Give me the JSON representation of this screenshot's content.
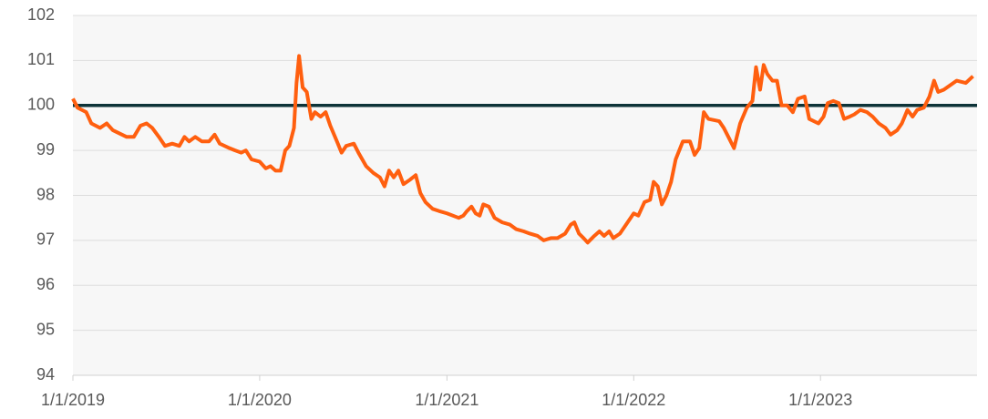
{
  "chart_data": {
    "type": "line",
    "x": [
      "2019-01-01",
      "2019-01-10",
      "2019-01-27",
      "2019-02-06",
      "2019-02-23",
      "2019-03-08",
      "2019-03-20",
      "2019-04-16",
      "2019-04-30",
      "2019-05-13",
      "2019-05-25",
      "2019-06-05",
      "2019-06-18",
      "2019-06-30",
      "2019-07-14",
      "2019-07-28",
      "2019-08-07",
      "2019-08-16",
      "2019-08-28",
      "2019-09-10",
      "2019-09-24",
      "2019-10-05",
      "2019-10-15",
      "2019-11-03",
      "2019-11-14",
      "2019-11-26",
      "2019-12-05",
      "2019-12-16",
      "2020-01-01",
      "2020-01-13",
      "2020-01-22",
      "2020-02-01",
      "2020-02-11",
      "2020-02-20",
      "2020-02-28",
      "2020-03-08",
      "2020-03-13",
      "2020-03-18",
      "2020-03-25",
      "2020-04-02",
      "2020-04-11",
      "2020-04-18",
      "2020-04-29",
      "2020-05-09",
      "2020-05-18",
      "2020-05-31",
      "2020-06-09",
      "2020-06-18",
      "2020-07-03",
      "2020-07-12",
      "2020-07-27",
      "2020-08-10",
      "2020-08-23",
      "2020-09-01",
      "2020-09-10",
      "2020-09-19",
      "2020-09-28",
      "2020-10-08",
      "2020-10-21",
      "2020-11-01",
      "2020-11-10",
      "2020-11-20",
      "2020-12-04",
      "2020-12-17",
      "2021-01-01",
      "2021-01-24",
      "2021-02-02",
      "2021-02-09",
      "2021-02-18",
      "2021-02-26",
      "2021-03-06",
      "2021-03-13",
      "2021-03-24",
      "2021-04-04",
      "2021-04-19",
      "2021-05-04",
      "2021-05-16",
      "2021-05-31",
      "2021-06-12",
      "2021-06-27",
      "2021-07-09",
      "2021-07-23",
      "2021-08-05",
      "2021-08-20",
      "2021-08-31",
      "2021-09-07",
      "2021-09-16",
      "2021-09-25",
      "2021-10-03",
      "2021-10-16",
      "2021-10-26",
      "2021-11-04",
      "2021-11-14",
      "2021-11-22",
      "2021-12-05",
      "2021-12-17",
      "2022-01-01",
      "2022-01-10",
      "2022-01-22",
      "2022-02-02",
      "2022-02-09",
      "2022-02-17",
      "2022-02-25",
      "2022-03-06",
      "2022-03-15",
      "2022-03-24",
      "2022-04-07",
      "2022-04-21",
      "2022-04-30",
      "2022-05-09",
      "2022-05-18",
      "2022-05-27",
      "2022-06-17",
      "2022-06-26",
      "2022-07-05",
      "2022-07-16",
      "2022-07-28",
      "2022-08-10",
      "2022-08-21",
      "2022-08-28",
      "2022-09-05",
      "2022-09-12",
      "2022-09-19",
      "2022-09-29",
      "2022-10-08",
      "2022-10-17",
      "2022-10-28",
      "2022-11-08",
      "2022-11-18",
      "2022-12-01",
      "2022-12-10",
      "2022-12-28",
      "2023-01-07",
      "2023-01-15",
      "2023-01-26",
      "2023-02-06",
      "2023-02-16",
      "2023-02-27",
      "2023-03-08",
      "2023-03-20",
      "2023-04-02",
      "2023-04-13",
      "2023-04-25",
      "2023-05-08",
      "2023-05-18",
      "2023-05-31",
      "2023-06-09",
      "2023-06-20",
      "2023-06-30",
      "2023-07-09",
      "2023-07-22",
      "2023-08-02",
      "2023-08-11",
      "2023-08-19",
      "2023-08-30",
      "2023-09-24",
      "2023-10-12",
      "2023-10-26"
    ],
    "series": [
      {
        "color": "#ff5f0f",
        "values": [
          100.15,
          99.95,
          99.85,
          99.6,
          99.5,
          99.6,
          99.45,
          99.3,
          99.3,
          99.55,
          99.6,
          99.5,
          99.3,
          99.1,
          99.15,
          99.1,
          99.3,
          99.2,
          99.3,
          99.2,
          99.2,
          99.35,
          99.15,
          99.05,
          99.0,
          98.95,
          99.0,
          98.8,
          98.75,
          98.6,
          98.65,
          98.55,
          98.55,
          99.0,
          99.1,
          99.5,
          100.5,
          101.1,
          100.4,
          100.3,
          99.7,
          99.85,
          99.75,
          99.85,
          99.55,
          99.2,
          98.95,
          99.1,
          99.15,
          98.95,
          98.65,
          98.5,
          98.4,
          98.2,
          98.55,
          98.4,
          98.55,
          98.25,
          98.35,
          98.45,
          98.05,
          97.85,
          97.7,
          97.65,
          97.6,
          97.5,
          97.55,
          97.65,
          97.75,
          97.6,
          97.55,
          97.8,
          97.75,
          97.5,
          97.4,
          97.35,
          97.25,
          97.2,
          97.15,
          97.1,
          97.0,
          97.05,
          97.05,
          97.15,
          97.35,
          97.4,
          97.15,
          97.05,
          96.95,
          97.1,
          97.2,
          97.1,
          97.2,
          97.05,
          97.15,
          97.35,
          97.6,
          97.55,
          97.85,
          97.9,
          98.3,
          98.2,
          97.8,
          98.0,
          98.3,
          98.8,
          99.2,
          99.2,
          98.9,
          99.05,
          99.85,
          99.7,
          99.65,
          99.5,
          99.3,
          99.05,
          99.6,
          99.95,
          100.1,
          100.85,
          100.35,
          100.9,
          100.7,
          100.55,
          100.55,
          100.0,
          100.0,
          99.85,
          100.15,
          100.2,
          99.7,
          99.6,
          99.75,
          100.05,
          100.1,
          100.05,
          99.7,
          99.75,
          99.8,
          99.9,
          99.85,
          99.75,
          99.6,
          99.5,
          99.35,
          99.45,
          99.6,
          99.9,
          99.75,
          99.9,
          99.95,
          100.2,
          100.55,
          100.3,
          100.35,
          100.55,
          100.5,
          100.65
        ]
      }
    ],
    "hlines": [
      {
        "value": 100,
        "color": "#0d3338"
      }
    ],
    "xlim": [
      "2019-01-01",
      "2023-11-03"
    ],
    "xticks": [
      {
        "value": "2019-01-01",
        "label": "1/1/2019"
      },
      {
        "value": "2020-01-01",
        "label": "1/1/2020"
      },
      {
        "value": "2021-01-01",
        "label": "1/1/2021"
      },
      {
        "value": "2022-01-01",
        "label": "1/1/2022"
      },
      {
        "value": "2023-01-01",
        "label": "1/1/2023"
      }
    ],
    "ylim": [
      94,
      102
    ],
    "yticks": [
      94,
      95,
      96,
      97,
      98,
      99,
      100,
      101,
      102
    ],
    "grid": true
  }
}
